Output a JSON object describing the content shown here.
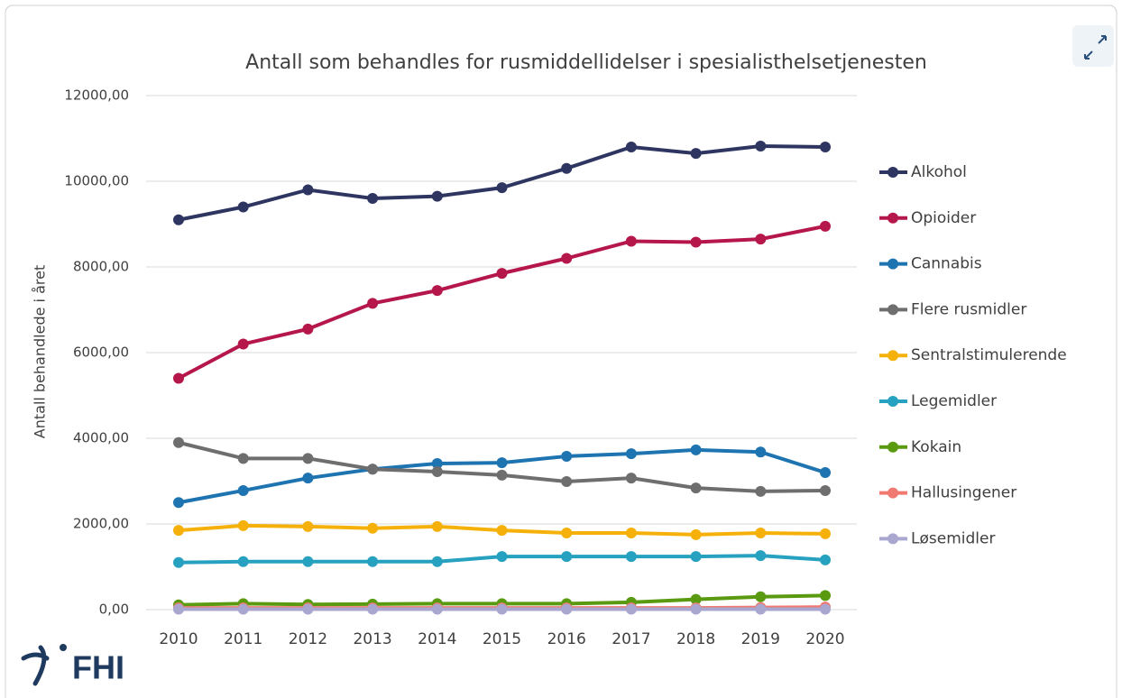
{
  "chart_data": {
    "type": "line",
    "title": "Antall som behandles for rusmiddellidelser i spesialisthelsetjenesten",
    "y_label": "Antall behandlede  i året",
    "logo": "FHI",
    "categories": [
      "2010",
      "2011",
      "2012",
      "2013",
      "2014",
      "2015",
      "2016",
      "2017",
      "2018",
      "2019",
      "2020"
    ],
    "ylim": [
      0,
      12000
    ],
    "yticks": [
      {
        "value": 0,
        "label": "0,00"
      },
      {
        "value": 2000,
        "label": "2000,00"
      },
      {
        "value": 4000,
        "label": "4000,00"
      },
      {
        "value": 6000,
        "label": "6000,00"
      },
      {
        "value": 8000,
        "label": "8000,00"
      },
      {
        "value": 10000,
        "label": "10000,00"
      },
      {
        "value": 12000,
        "label": "12000,00"
      }
    ],
    "grid": true,
    "legend": "right",
    "series": [
      {
        "name": "Alkohol",
        "color": "#2e3560",
        "values": [
          9100,
          9400,
          9800,
          9600,
          9650,
          9850,
          10300,
          10800,
          10650,
          10820,
          10800
        ]
      },
      {
        "name": "Opioider",
        "color": "#b5174b",
        "values": [
          5400,
          6200,
          6550,
          7150,
          7450,
          7850,
          8200,
          8600,
          8580,
          8650,
          8950
        ]
      },
      {
        "name": "Cannabis",
        "color": "#1e74b0",
        "values": [
          2500,
          2780,
          3070,
          3280,
          3410,
          3430,
          3580,
          3640,
          3730,
          3680,
          3200
        ]
      },
      {
        "name": "Flere rusmidler",
        "color": "#6e6e6e",
        "values": [
          3900,
          3530,
          3530,
          3280,
          3220,
          3140,
          2990,
          3070,
          2840,
          2760,
          2780
        ]
      },
      {
        "name": "Sentralstimulerende",
        "color": "#f5b10a",
        "values": [
          1850,
          1960,
          1940,
          1900,
          1940,
          1850,
          1790,
          1790,
          1750,
          1790,
          1770
        ]
      },
      {
        "name": "Legemidler",
        "color": "#26a2c0",
        "values": [
          1100,
          1120,
          1120,
          1120,
          1120,
          1240,
          1240,
          1240,
          1240,
          1260,
          1160
        ]
      },
      {
        "name": "Kokain",
        "color": "#5a9a10",
        "values": [
          110,
          140,
          120,
          130,
          140,
          140,
          140,
          170,
          240,
          300,
          330
        ]
      },
      {
        "name": "Hallusingener",
        "color": "#f07a72",
        "values": [
          40,
          40,
          40,
          40,
          40,
          40,
          40,
          40,
          40,
          50,
          60
        ]
      },
      {
        "name": "Løsemidler",
        "color": "#a9a6d0",
        "values": [
          10,
          10,
          10,
          10,
          10,
          10,
          10,
          10,
          10,
          10,
          10
        ]
      }
    ]
  }
}
